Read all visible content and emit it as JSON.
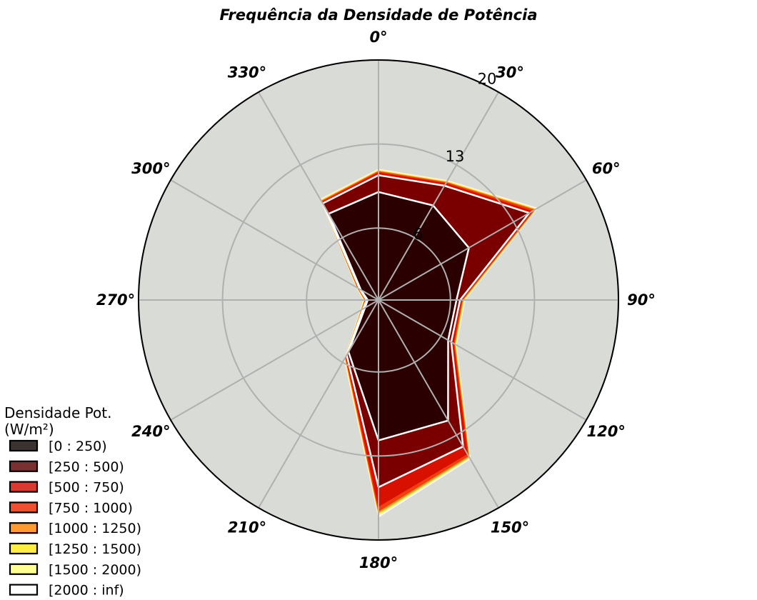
{
  "chart_data": {
    "type": "polar-stacked-area",
    "title": "Frequência da Densidade de Potência",
    "directions": [
      0,
      30,
      60,
      90,
      120,
      150,
      180,
      210,
      240,
      270,
      300,
      330
    ],
    "angle_labels": [
      "0°",
      "30°",
      "60°",
      "90°",
      "120°",
      "150°",
      "180°",
      "210°",
      "240°",
      "270°",
      "300°",
      "330°"
    ],
    "r_ticks": [
      6,
      13,
      20
    ],
    "r_tick_labels": [
      "6",
      "13",
      "20"
    ],
    "rlim": [
      0,
      20
    ],
    "theta_zero": "N",
    "theta_direction": "clockwise",
    "grid": true,
    "legend_title": "Densidade Pot.\n(W/m²)",
    "legend_location": "lower-left",
    "series": [
      {
        "name": "[0 : 250)",
        "color": "#2a0000",
        "legend_color": "#3a332f",
        "values": [
          9.0,
          9.1,
          8.7,
          6.5,
          6.7,
          11.6,
          11.7,
          5.0,
          1.3,
          0.9,
          1.7,
          8.3
        ]
      },
      {
        "name": "[250 : 500)",
        "color": "#7a0000",
        "legend_color": "#7a3030",
        "values": [
          10.4,
          11.0,
          14.5,
          6.8,
          7.0,
          14.1,
          15.6,
          5.3,
          1.5,
          1.0,
          1.8,
          9.3
        ]
      },
      {
        "name": "[500 : 750)",
        "color": "#d81000",
        "legend_color": "#d83a30",
        "values": [
          10.6,
          11.2,
          14.8,
          6.9,
          7.2,
          14.8,
          17.2,
          5.4,
          1.6,
          1.1,
          1.9,
          9.4
        ]
      },
      {
        "name": "[750 : 1000)",
        "color": "#f04010",
        "legend_color": "#f05030",
        "values": [
          10.7,
          11.3,
          15.0,
          7.0,
          7.3,
          15.0,
          17.6,
          5.5,
          1.6,
          1.1,
          2.0,
          9.5
        ]
      },
      {
        "name": "[1000 : 1250)",
        "color": "#ff9a20",
        "legend_color": "#ff9a30",
        "values": [
          10.75,
          11.35,
          15.1,
          7.05,
          7.35,
          15.1,
          17.75,
          5.55,
          1.65,
          1.15,
          2.0,
          9.55
        ]
      },
      {
        "name": "[1250 : 1500)",
        "color": "#ffee40",
        "legend_color": "#ffee40",
        "values": [
          10.8,
          11.4,
          15.15,
          7.1,
          7.4,
          15.15,
          17.85,
          5.6,
          1.7,
          1.2,
          2.05,
          9.6
        ]
      },
      {
        "name": "[1500 : 2000)",
        "color": "#fff0a8",
        "legend_color": "#ffff90",
        "values": [
          10.85,
          11.45,
          15.2,
          7.15,
          7.45,
          15.2,
          17.95,
          5.65,
          1.7,
          1.2,
          2.1,
          9.65
        ]
      },
      {
        "name": "[2000 : inf)",
        "color": "#fffaf0",
        "legend_color": "#ffffff",
        "values": [
          10.9,
          11.5,
          15.3,
          7.2,
          7.5,
          15.3,
          18.1,
          5.7,
          1.75,
          1.25,
          2.1,
          9.7
        ]
      }
    ]
  }
}
